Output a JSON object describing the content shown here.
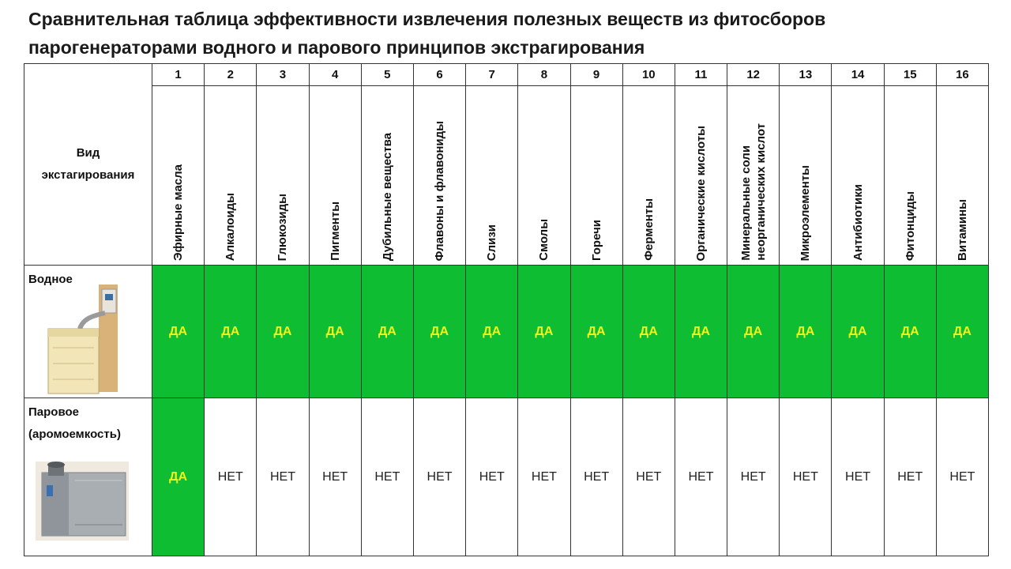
{
  "title": {
    "line1": "Сравнительная таблица эффективности извлечения полезных веществ из фитосборов",
    "line2": "парогенераторами водного и парового принципов экстрагирования"
  },
  "table": {
    "kind_header": {
      "line1": "Вид",
      "line2": "экстагирования"
    },
    "columns": [
      {
        "num": "1",
        "lines": [
          "Эфирные масла"
        ]
      },
      {
        "num": "2",
        "lines": [
          "Алкалоиды"
        ]
      },
      {
        "num": "3",
        "lines": [
          "Глюкозиды"
        ]
      },
      {
        "num": "4",
        "lines": [
          "Пигменты"
        ]
      },
      {
        "num": "5",
        "lines": [
          "Дубильные вещества"
        ]
      },
      {
        "num": "6",
        "lines": [
          "Флавоны и флавониды"
        ]
      },
      {
        "num": "7",
        "lines": [
          "Слизи"
        ]
      },
      {
        "num": "8",
        "lines": [
          "Смолы"
        ]
      },
      {
        "num": "9",
        "lines": [
          "Горечи"
        ]
      },
      {
        "num": "10",
        "lines": [
          "Ферменты"
        ]
      },
      {
        "num": "11",
        "lines": [
          "Органические кислоты"
        ]
      },
      {
        "num": "12",
        "lines": [
          "Минеральные соли",
          "неорганических кислот"
        ]
      },
      {
        "num": "13",
        "lines": [
          "Микроэлементы"
        ]
      },
      {
        "num": "14",
        "lines": [
          "Антибиотики"
        ]
      },
      {
        "num": "15",
        "lines": [
          "Фитонциды"
        ]
      },
      {
        "num": "16",
        "lines": [
          "Витамины"
        ]
      }
    ],
    "rows": [
      {
        "lines": [
          "Водное"
        ],
        "image": "water-steam-generator-photo",
        "values": [
          "ДА",
          "ДА",
          "ДА",
          "ДА",
          "ДА",
          "ДА",
          "ДА",
          "ДА",
          "ДА",
          "ДА",
          "ДА",
          "ДА",
          "ДА",
          "ДА",
          "ДА",
          "ДА"
        ]
      },
      {
        "lines": [
          "Паровое",
          "(аромоемкость)"
        ],
        "image": "steam-aroma-container-photo",
        "values": [
          "ДА",
          "НЕТ",
          "НЕТ",
          "НЕТ",
          "НЕТ",
          "НЕТ",
          "НЕТ",
          "НЕТ",
          "НЕТ",
          "НЕТ",
          "НЕТ",
          "НЕТ",
          "НЕТ",
          "НЕТ",
          "НЕТ",
          "НЕТ"
        ]
      }
    ],
    "yes_value": "ДА"
  },
  "colors": {
    "yes_background": "#0fbd32",
    "yes_text": "#f1f51b",
    "no_background": "#ffffff",
    "no_text": "#222222",
    "border": "#333333"
  }
}
